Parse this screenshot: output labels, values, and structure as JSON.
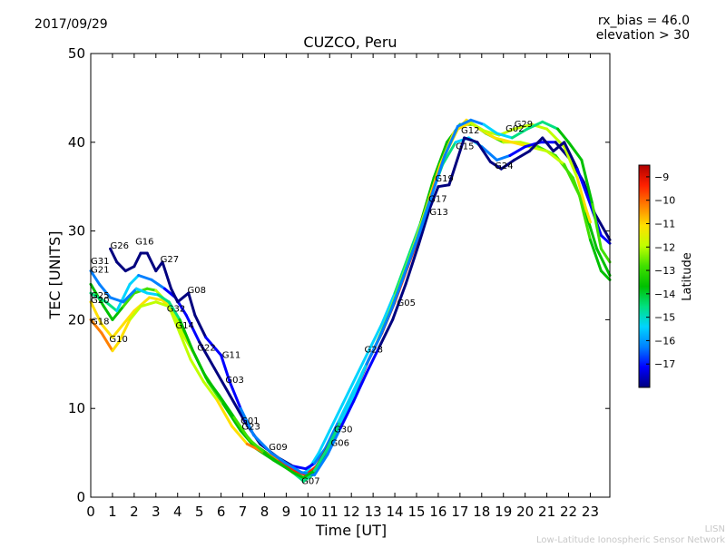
{
  "header": {
    "date": "2017/09/29",
    "rx_bias": "rx_bias = 46.0",
    "elevation": "elevation > 30"
  },
  "footer": {
    "line1": "LISN",
    "line2": "Low-Latitude Ionospheric Sensor Network"
  },
  "chart_data": {
    "type": "line",
    "title": "CUZCO, Peru",
    "xlabel": "Time [UT]",
    "ylabel": "TEC [UNITS]",
    "xlim": [
      0,
      23.9
    ],
    "ylim": [
      0,
      50
    ],
    "x_ticks": [
      "0",
      "1",
      "2",
      "3",
      "4",
      "5",
      "6",
      "7",
      "8",
      "9",
      "10",
      "11",
      "12",
      "13",
      "14",
      "15",
      "16",
      "17",
      "18",
      "19",
      "20",
      "21",
      "22",
      "23"
    ],
    "y_ticks": [
      "0",
      "10",
      "20",
      "30",
      "40",
      "50"
    ],
    "colorbar": {
      "label": "Latitude",
      "min": -18,
      "max": -8.5,
      "ticks": [
        "-9",
        "-10",
        "-11",
        "-12",
        "-13",
        "-14",
        "-15",
        "-16",
        "-17"
      ],
      "tick_values": [
        -9,
        -10,
        -11,
        -12,
        -13,
        -14,
        -15,
        -16,
        -17
      ],
      "colors": [
        "#00007f",
        "#0000ff",
        "#0080ff",
        "#00d4ff",
        "#00e080",
        "#00c000",
        "#40e000",
        "#c0ff00",
        "#ffe000",
        "#ff8000",
        "#ff2000",
        "#b00000"
      ]
    },
    "satellite_labels": [
      {
        "name": "G26",
        "x": 0.9,
        "y": 28.0
      },
      {
        "name": "G16",
        "x": 2.05,
        "y": 28.5
      },
      {
        "name": "G31",
        "x": 0.0,
        "y": 26.3
      },
      {
        "name": "G21",
        "x": 0.0,
        "y": 25.3
      },
      {
        "name": "G27",
        "x": 3.2,
        "y": 26.5
      },
      {
        "name": "G08",
        "x": 4.45,
        "y": 23.0
      },
      {
        "name": "G25",
        "x": 0.0,
        "y": 22.4
      },
      {
        "name": "G20",
        "x": 0.0,
        "y": 21.9
      },
      {
        "name": "G32",
        "x": 3.5,
        "y": 20.9
      },
      {
        "name": "G18",
        "x": 0.0,
        "y": 19.5
      },
      {
        "name": "G14",
        "x": 3.9,
        "y": 19.0
      },
      {
        "name": "G10",
        "x": 0.85,
        "y": 17.5
      },
      {
        "name": "G22",
        "x": 4.9,
        "y": 16.5
      },
      {
        "name": "G11",
        "x": 6.05,
        "y": 15.7
      },
      {
        "name": "G03",
        "x": 6.2,
        "y": 12.9
      },
      {
        "name": "G01",
        "x": 6.9,
        "y": 8.3
      },
      {
        "name": "G23",
        "x": 6.95,
        "y": 7.6
      },
      {
        "name": "G09",
        "x": 8.2,
        "y": 5.3
      },
      {
        "name": "G07",
        "x": 9.7,
        "y": 1.5
      },
      {
        "name": "G30",
        "x": 11.2,
        "y": 7.3
      },
      {
        "name": "G06",
        "x": 11.05,
        "y": 5.8
      },
      {
        "name": "G28",
        "x": 12.6,
        "y": 16.3
      },
      {
        "name": "G05",
        "x": 14.1,
        "y": 21.6
      },
      {
        "name": "G19",
        "x": 15.85,
        "y": 35.6
      },
      {
        "name": "G17",
        "x": 15.55,
        "y": 33.3
      },
      {
        "name": "G13",
        "x": 15.6,
        "y": 31.8
      },
      {
        "name": "G12",
        "x": 17.05,
        "y": 41.0
      },
      {
        "name": "G15",
        "x": 16.8,
        "y": 39.2
      },
      {
        "name": "G24",
        "x": 18.6,
        "y": 37.0
      },
      {
        "name": "G02",
        "x": 19.1,
        "y": 41.2
      },
      {
        "name": "G29",
        "x": 19.5,
        "y": 41.7
      }
    ],
    "tracks": [
      {
        "name": "envelope-a",
        "lat": -14.0,
        "points": [
          [
            0,
            24
          ],
          [
            0.6,
            21.5
          ],
          [
            1.0,
            20
          ],
          [
            1.5,
            21.5
          ],
          [
            2.0,
            23
          ],
          [
            2.6,
            23.5
          ],
          [
            3.0,
            23.3
          ],
          [
            3.5,
            22
          ],
          [
            4.0,
            20
          ],
          [
            4.6,
            17
          ],
          [
            5.2,
            14
          ],
          [
            6.0,
            11
          ],
          [
            6.8,
            8
          ],
          [
            7.5,
            6
          ],
          [
            8.2,
            4.8
          ],
          [
            9.0,
            3.5
          ],
          [
            9.6,
            2.5
          ],
          [
            10.0,
            3
          ],
          [
            10.5,
            5
          ],
          [
            11.0,
            7.5
          ],
          [
            11.6,
            10.5
          ],
          [
            12.2,
            13.5
          ],
          [
            12.8,
            16.5
          ],
          [
            13.4,
            19.5
          ],
          [
            14.0,
            23
          ],
          [
            14.6,
            27
          ],
          [
            15.2,
            31
          ],
          [
            15.8,
            36
          ],
          [
            16.4,
            40
          ],
          [
            17.0,
            42
          ],
          [
            17.6,
            42
          ],
          [
            18.2,
            41
          ],
          [
            19.0,
            40
          ],
          [
            19.8,
            40
          ],
          [
            20.6,
            39.5
          ],
          [
            21.4,
            38.5
          ],
          [
            22.2,
            36
          ],
          [
            22.8,
            32
          ],
          [
            23.3,
            28
          ],
          [
            23.9,
            25
          ]
        ]
      },
      {
        "name": "envelope-b",
        "lat": -12.5,
        "points": [
          [
            0,
            22
          ],
          [
            0.5,
            19.5
          ],
          [
            1.0,
            18
          ],
          [
            1.5,
            19.5
          ],
          [
            2.0,
            21
          ],
          [
            2.7,
            22.5
          ],
          [
            3.3,
            22.2
          ],
          [
            3.8,
            21
          ],
          [
            4.2,
            18.5
          ],
          [
            4.8,
            16
          ],
          [
            5.4,
            13
          ],
          [
            6.1,
            10.5
          ],
          [
            6.9,
            7.5
          ],
          [
            7.6,
            5.5
          ],
          [
            8.4,
            4.2
          ],
          [
            9.2,
            3
          ],
          [
            9.8,
            1.8
          ],
          [
            10.2,
            2.5
          ],
          [
            10.7,
            4.5
          ],
          [
            11.3,
            7.5
          ],
          [
            11.9,
            10.5
          ],
          [
            12.5,
            14
          ],
          [
            13.1,
            17
          ],
          [
            13.7,
            20.5
          ],
          [
            14.3,
            24.5
          ],
          [
            14.9,
            28.5
          ],
          [
            15.5,
            33
          ],
          [
            16.1,
            37.5
          ],
          [
            16.7,
            41
          ],
          [
            17.3,
            42.5
          ],
          [
            17.9,
            41.5
          ],
          [
            18.6,
            40.5
          ],
          [
            19.4,
            40
          ],
          [
            20.2,
            39.5
          ],
          [
            21.0,
            39
          ],
          [
            21.8,
            37.5
          ],
          [
            22.5,
            34
          ],
          [
            23.0,
            29
          ],
          [
            23.5,
            25.5
          ],
          [
            23.9,
            24.5
          ]
        ]
      },
      {
        "name": "envelope-c",
        "lat": -16.0,
        "points": [
          [
            0,
            23
          ],
          [
            0.7,
            22
          ],
          [
            1.2,
            21
          ],
          [
            1.8,
            24
          ],
          [
            2.2,
            25
          ],
          [
            2.8,
            24.5
          ],
          [
            3.4,
            23.5
          ],
          [
            3.9,
            22.5
          ],
          [
            4.4,
            20.5
          ],
          [
            5.0,
            17.5
          ],
          [
            5.7,
            14.5
          ],
          [
            6.4,
            11.5
          ],
          [
            7.1,
            8.5
          ],
          [
            7.8,
            6
          ],
          [
            8.6,
            4.5
          ],
          [
            9.3,
            3.5
          ],
          [
            9.9,
            3.2
          ],
          [
            10.3,
            3.8
          ],
          [
            10.8,
            5.5
          ],
          [
            11.4,
            8.5
          ],
          [
            12.0,
            11.5
          ],
          [
            12.6,
            14.5
          ],
          [
            13.2,
            17.5
          ],
          [
            13.8,
            21
          ],
          [
            14.4,
            25
          ],
          [
            15.0,
            29
          ],
          [
            15.6,
            33.5
          ],
          [
            16.2,
            37.5
          ],
          [
            16.8,
            40
          ],
          [
            17.4,
            40.5
          ],
          [
            18.0,
            39.5
          ],
          [
            18.7,
            38
          ],
          [
            19.3,
            38.5
          ],
          [
            20.0,
            39.5
          ],
          [
            20.7,
            40
          ],
          [
            21.4,
            40
          ],
          [
            22.1,
            38
          ],
          [
            22.7,
            35.5
          ],
          [
            23.2,
            32
          ],
          [
            23.9,
            29
          ]
        ]
      },
      {
        "name": "envelope-d",
        "lat": -10.5,
        "points": [
          [
            0,
            20
          ],
          [
            0.5,
            18.5
          ],
          [
            1.0,
            16.5
          ],
          [
            1.3,
            17.5
          ],
          [
            1.8,
            20
          ],
          [
            2.3,
            21.5
          ],
          [
            3.0,
            22
          ],
          [
            3.6,
            21.5
          ],
          [
            4.1,
            18.5
          ],
          [
            4.6,
            15.5
          ],
          [
            5.2,
            13
          ],
          [
            5.8,
            11
          ],
          [
            6.5,
            8
          ],
          [
            7.2,
            6
          ],
          [
            8.0,
            5
          ],
          [
            8.7,
            4.2
          ],
          [
            9.4,
            3
          ],
          [
            9.9,
            2.5
          ],
          [
            10.4,
            3.5
          ],
          [
            11.0,
            6
          ],
          [
            11.6,
            9
          ],
          [
            12.2,
            12
          ],
          [
            12.8,
            15.5
          ],
          [
            13.4,
            18.5
          ],
          [
            14.0,
            22
          ],
          [
            14.6,
            26
          ],
          [
            15.2,
            30
          ],
          [
            15.8,
            35
          ],
          [
            16.3,
            38.5
          ],
          [
            16.9,
            41.5
          ],
          [
            17.5,
            42.2
          ],
          [
            18.1,
            41.3
          ],
          [
            18.8,
            40.8
          ],
          [
            19.5,
            41.5
          ],
          [
            20.3,
            42
          ],
          [
            21.0,
            41.5
          ],
          [
            21.8,
            39.5
          ],
          [
            22.4,
            36
          ],
          [
            22.8,
            32.5
          ],
          [
            23.0,
            31
          ]
        ]
      },
      {
        "name": "envelope-e",
        "lat": -17.5,
        "points": [
          [
            0.9,
            28
          ],
          [
            1.2,
            26.5
          ],
          [
            1.6,
            25.5
          ],
          [
            2.0,
            26
          ],
          [
            2.3,
            27.5
          ],
          [
            2.6,
            27.5
          ],
          [
            3.0,
            25.5
          ],
          [
            3.3,
            26.5
          ],
          [
            3.7,
            23.5
          ],
          [
            4.0,
            22
          ],
          [
            4.5,
            23
          ],
          [
            4.8,
            20.5
          ],
          [
            5.3,
            18
          ],
          [
            6.0,
            16
          ],
          [
            6.4,
            13
          ],
          [
            6.9,
            10
          ],
          [
            7.5,
            7
          ],
          [
            8.3,
            5
          ],
          [
            9.0,
            3.8
          ],
          [
            9.7,
            2.8
          ],
          [
            10.3,
            2.5
          ],
          [
            10.9,
            4.8
          ],
          [
            11.5,
            7.8
          ],
          [
            12.1,
            10.8
          ],
          [
            12.7,
            14
          ],
          [
            13.3,
            17
          ],
          [
            13.9,
            20
          ],
          [
            14.5,
            24
          ],
          [
            15.1,
            28.5
          ],
          [
            15.6,
            32.5
          ],
          [
            16.0,
            35
          ],
          [
            16.5,
            35.2
          ],
          [
            17.2,
            40.5
          ],
          [
            17.8,
            40
          ],
          [
            18.4,
            37.8
          ],
          [
            18.9,
            37
          ],
          [
            19.5,
            38
          ],
          [
            20.2,
            39
          ],
          [
            20.8,
            40.5
          ],
          [
            21.3,
            39
          ],
          [
            21.8,
            40
          ],
          [
            22.4,
            37
          ],
          [
            23.0,
            33
          ],
          [
            23.5,
            29.5
          ],
          [
            23.9,
            28.6
          ]
        ]
      },
      {
        "name": "envelope-f",
        "lat": -14.8,
        "points": [
          [
            0,
            25.5
          ],
          [
            0.4,
            24
          ],
          [
            0.9,
            22.5
          ],
          [
            1.5,
            22
          ],
          [
            2.1,
            23.5
          ],
          [
            2.6,
            23
          ],
          [
            3.1,
            22.8
          ],
          [
            3.6,
            22
          ],
          [
            4.1,
            20
          ],
          [
            4.7,
            16.5
          ],
          [
            5.3,
            13.5
          ],
          [
            5.9,
            11.5
          ],
          [
            6.6,
            9
          ],
          [
            7.3,
            6.5
          ],
          [
            8.0,
            5
          ],
          [
            8.7,
            3.8
          ],
          [
            9.3,
            2.8
          ],
          [
            9.8,
            2.2
          ],
          [
            10.3,
            3
          ],
          [
            10.9,
            5.5
          ],
          [
            11.5,
            8.5
          ],
          [
            12.1,
            11.5
          ],
          [
            12.7,
            15
          ],
          [
            13.3,
            18
          ],
          [
            13.9,
            21.5
          ],
          [
            14.5,
            25.5
          ],
          [
            15.1,
            29.5
          ],
          [
            15.7,
            34
          ],
          [
            16.3,
            38.5
          ],
          [
            16.9,
            41.8
          ],
          [
            17.5,
            42.5
          ],
          [
            18.1,
            42
          ],
          [
            18.7,
            41
          ],
          [
            19.4,
            40.5
          ],
          [
            20.1,
            41.5
          ],
          [
            20.8,
            42.3
          ],
          [
            21.5,
            41.5
          ],
          [
            22.0,
            40
          ],
          [
            22.6,
            38
          ],
          [
            23.1,
            33
          ],
          [
            23.5,
            28
          ],
          [
            23.9,
            26.5
          ]
        ]
      }
    ]
  }
}
